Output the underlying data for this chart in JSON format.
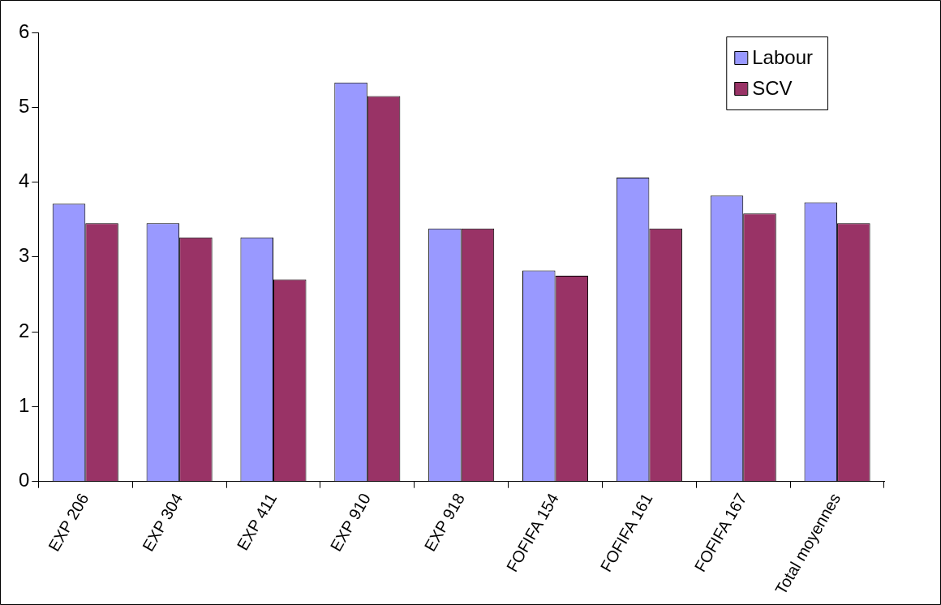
{
  "chart_data": {
    "type": "bar",
    "categories": [
      "EXP 206",
      "EXP 304",
      "EXP 411",
      "EXP 910",
      "EXP 918",
      "FOFIFA 154",
      "FOFIFA 161",
      "FOFIFA 167",
      "Total moyennes"
    ],
    "series": [
      {
        "name": "Labour",
        "color": "#9999ff",
        "values": [
          3.71,
          3.45,
          3.26,
          5.33,
          3.38,
          2.82,
          4.06,
          3.82,
          3.73
        ]
      },
      {
        "name": "SCV",
        "color": "#993366",
        "values": [
          3.45,
          3.26,
          2.7,
          5.15,
          3.38,
          2.75,
          3.38,
          3.58,
          3.45
        ]
      }
    ],
    "ylim": [
      0,
      6
    ],
    "yticks": [
      0,
      1,
      2,
      3,
      4,
      5,
      6
    ],
    "grid": false,
    "legend": "top right"
  }
}
